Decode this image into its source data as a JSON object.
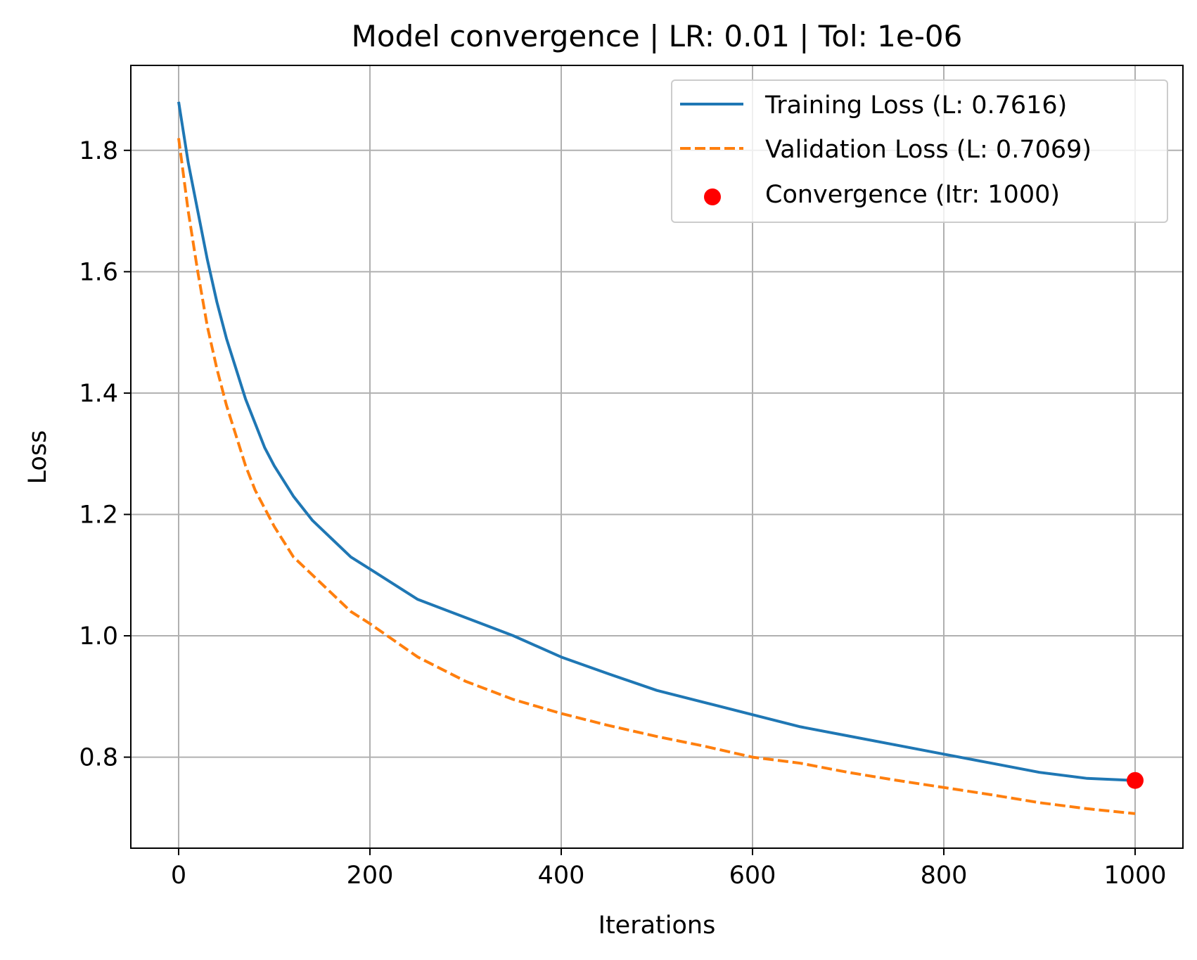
{
  "chart_data": {
    "type": "line",
    "title": "Model convergence | LR: 0.01 | Tol: 1e-06",
    "xlabel": "Iterations",
    "ylabel": "Loss",
    "xlim": [
      -50,
      1050
    ],
    "ylim": [
      0.65,
      1.94
    ],
    "xticks": [
      {
        "value": 0,
        "label": "0"
      },
      {
        "value": 200,
        "label": "200"
      },
      {
        "value": 400,
        "label": "400"
      },
      {
        "value": 600,
        "label": "600"
      },
      {
        "value": 800,
        "label": "800"
      },
      {
        "value": 1000,
        "label": "1000"
      }
    ],
    "yticks": [
      {
        "value": 0.8,
        "label": "0.8"
      },
      {
        "value": 1.0,
        "label": "1.0"
      },
      {
        "value": 1.2,
        "label": "1.2"
      },
      {
        "value": 1.4,
        "label": "1.4"
      },
      {
        "value": 1.6,
        "label": "1.6"
      },
      {
        "value": 1.8,
        "label": "1.8"
      }
    ],
    "grid": true,
    "legend_position": "top-right",
    "series": [
      {
        "name": "Training Loss (L: 0.7616)",
        "color": "#1f77b4",
        "style": "solid",
        "x": [
          0,
          10,
          20,
          30,
          40,
          50,
          60,
          70,
          80,
          90,
          100,
          120,
          140,
          160,
          180,
          200,
          250,
          300,
          350,
          400,
          450,
          500,
          550,
          600,
          650,
          700,
          750,
          800,
          850,
          900,
          950,
          1000
        ],
        "y": [
          1.88,
          1.78,
          1.7,
          1.62,
          1.55,
          1.49,
          1.44,
          1.39,
          1.35,
          1.31,
          1.28,
          1.23,
          1.19,
          1.16,
          1.13,
          1.11,
          1.06,
          1.03,
          1.0,
          0.965,
          0.937,
          0.91,
          0.89,
          0.87,
          0.85,
          0.835,
          0.82,
          0.805,
          0.79,
          0.775,
          0.765,
          0.7616
        ]
      },
      {
        "name": "Validation Loss (L: 0.7069)",
        "color": "#ff7f0e",
        "style": "dashed",
        "x": [
          0,
          10,
          20,
          30,
          40,
          50,
          60,
          70,
          80,
          90,
          100,
          120,
          140,
          160,
          180,
          200,
          250,
          300,
          350,
          400,
          450,
          500,
          550,
          600,
          650,
          700,
          750,
          800,
          850,
          900,
          950,
          1000
        ],
        "y": [
          1.82,
          1.7,
          1.6,
          1.51,
          1.44,
          1.38,
          1.33,
          1.28,
          1.24,
          1.21,
          1.18,
          1.13,
          1.1,
          1.07,
          1.04,
          1.02,
          0.965,
          0.925,
          0.895,
          0.872,
          0.852,
          0.834,
          0.818,
          0.8,
          0.79,
          0.775,
          0.762,
          0.75,
          0.738,
          0.725,
          0.715,
          0.7069
        ]
      }
    ],
    "points": [
      {
        "name": "Convergence (Itr: 1000)",
        "color": "#ff0000",
        "x": 1000,
        "y": 0.7616
      }
    ]
  }
}
